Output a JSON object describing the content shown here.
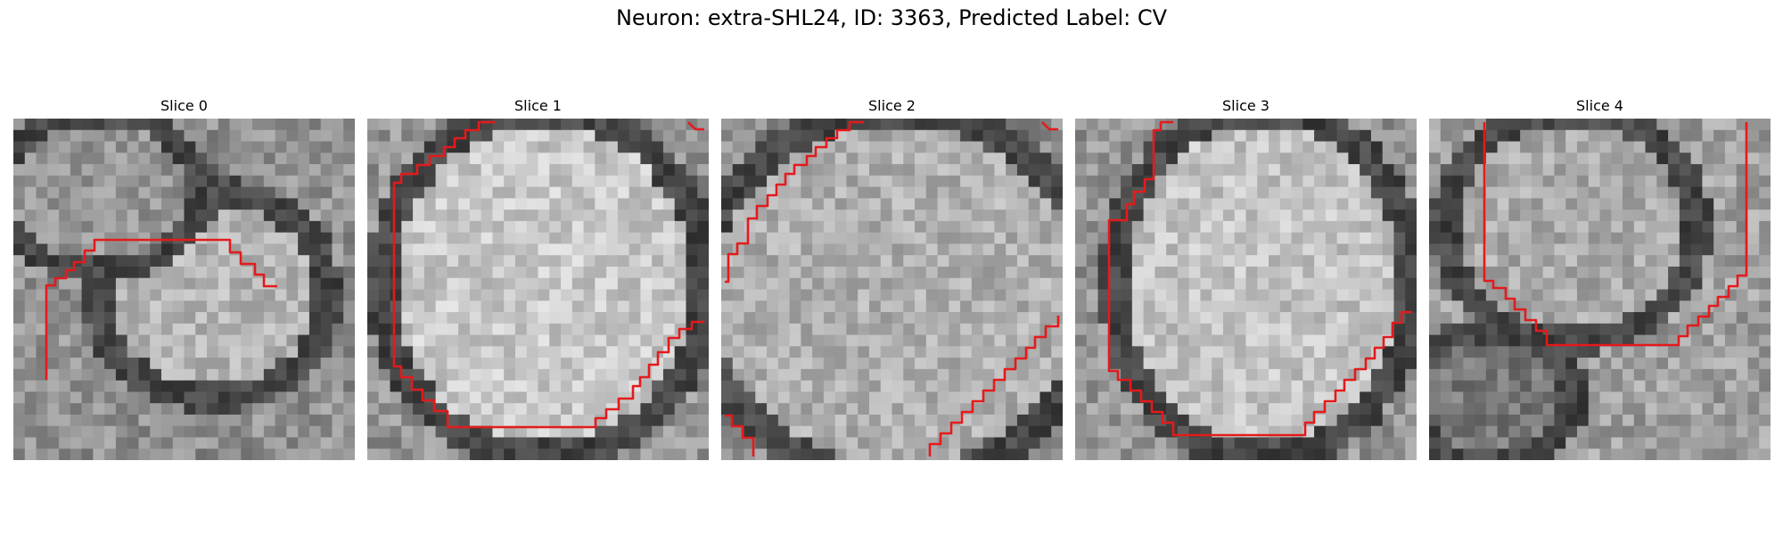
{
  "figure": {
    "title": "Neuron: extra-SHL24, ID: 3363, Predicted Label: CV",
    "contour_color": "#e41a1c"
  },
  "slices": [
    {
      "label": "Slice 0"
    },
    {
      "label": "Slice 1"
    },
    {
      "label": "Slice 2"
    },
    {
      "label": "Slice 3"
    },
    {
      "label": "Slice 4"
    }
  ]
}
